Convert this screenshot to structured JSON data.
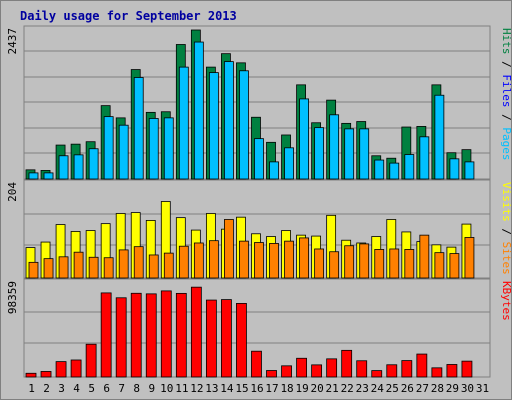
{
  "chart_data": {
    "type": "bar",
    "title": "Daily usage for September 2013",
    "categories": [
      "1",
      "2",
      "3",
      "4",
      "5",
      "6",
      "7",
      "8",
      "9",
      "10",
      "11",
      "12",
      "13",
      "14",
      "15",
      "16",
      "17",
      "18",
      "19",
      "20",
      "21",
      "22",
      "23",
      "24",
      "25",
      "26",
      "27",
      "28",
      "29",
      "30",
      "31"
    ],
    "weekend_days": [
      "1",
      "7",
      "8",
      "14",
      "15",
      "21",
      "22",
      "28",
      "29"
    ],
    "colors": {
      "hits": "#008040",
      "files": "#00c0ff",
      "pages": "#00c0ff",
      "visits": "#ffff00",
      "sites": "#ff8000",
      "kbytes": "#ff0000",
      "weekend_label": "#00805c",
      "weekday_label": "#000080"
    },
    "panels": [
      {
        "id": "hits",
        "ytick": "2437",
        "ymax": 2437,
        "label_parts": [
          {
            "text": "Pages",
            "color": "#00c0ff"
          },
          {
            "text": " / ",
            "color": "#000000"
          },
          {
            "text": "Files",
            "color": "#0000ff"
          },
          {
            "text": " / ",
            "color": "#000000"
          },
          {
            "text": "Hits",
            "color": "#008040"
          }
        ],
        "series": [
          {
            "name": "Hits",
            "color": "#008040",
            "values": [
              150,
              140,
              555,
              570,
              610,
              1200,
              1000,
              1790,
              1090,
              1100,
              2200,
              2437,
              1830,
              2050,
              1900,
              1010,
              600,
              720,
              1540,
              920,
              1290,
              910,
              940,
              380,
              340,
              850,
              860,
              1540,
              430,
              480,
              0
            ]
          },
          {
            "name": "Files",
            "color": "#00c0ff",
            "values": [
              100,
              100,
              380,
              395,
              495,
              1020,
              880,
              1660,
              990,
              1000,
              1830,
              2240,
              1740,
              1920,
              1770,
              660,
              280,
              510,
              1310,
              840,
              1050,
              820,
              820,
              310,
              260,
              400,
              690,
              1370,
              330,
              280,
              0
            ]
          }
        ]
      },
      {
        "id": "visits",
        "ytick": "204",
        "ymax": 204,
        "label_parts": [
          {
            "text": "Sites",
            "color": "#ff8000"
          },
          {
            "text": " / ",
            "color": "#000000"
          },
          {
            "text": "Visits",
            "color": "#ffff00"
          }
        ],
        "series": [
          {
            "name": "Visits",
            "color": "#ffff00",
            "values": [
              66,
              78,
              116,
              101,
              103,
              118,
              140,
              142,
              125,
              166,
              131,
              104,
              140,
              106,
              132,
              96,
              90,
              103,
              93,
              91,
              136,
              82,
              76,
              90,
              127,
              100,
              79,
              72,
              67,
              117,
              0
            ]
          },
          {
            "name": "Sites",
            "color": "#ff8000",
            "values": [
              34,
              42,
              46,
              56,
              45,
              44,
              61,
              68,
              50,
              54,
              69,
              76,
              81,
              127,
              80,
              77,
              75,
              80,
              87,
              63,
              57,
              70,
              74,
              62,
              63,
              62,
              93,
              55,
              53,
              88,
              0
            ]
          }
        ]
      },
      {
        "id": "kbytes",
        "ytick": "98359",
        "ymax": 98359,
        "label_parts": [
          {
            "text": "KBytes",
            "color": "#ff0000"
          }
        ],
        "series": [
          {
            "name": "KBytes",
            "color": "#ff0000",
            "values": [
              3900,
              5800,
              16100,
              17800,
              34300,
              88000,
              82900,
              87600,
              87000,
              90100,
              87500,
              94000,
              80500,
              81000,
              77000,
              27000,
              6800,
              11700,
              19600,
              12700,
              19000,
              27900,
              17000,
              6700,
              12800,
              17200,
              24000,
              9600,
              13100,
              16600,
              0
            ]
          }
        ]
      }
    ]
  }
}
